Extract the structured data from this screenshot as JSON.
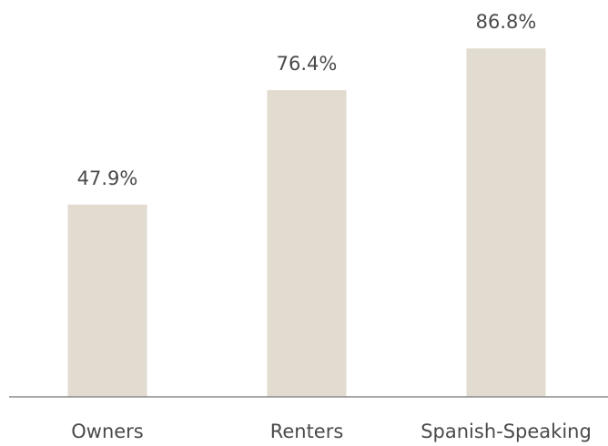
{
  "chart_data": {
    "type": "bar",
    "categories": [
      "Owners",
      "Renters",
      "Spanish-Speaking"
    ],
    "values": [
      47.9,
      76.4,
      86.8
    ],
    "value_labels": [
      "47.9%",
      "76.4%",
      "86.8%"
    ],
    "color": "#e2dbd0"
  }
}
